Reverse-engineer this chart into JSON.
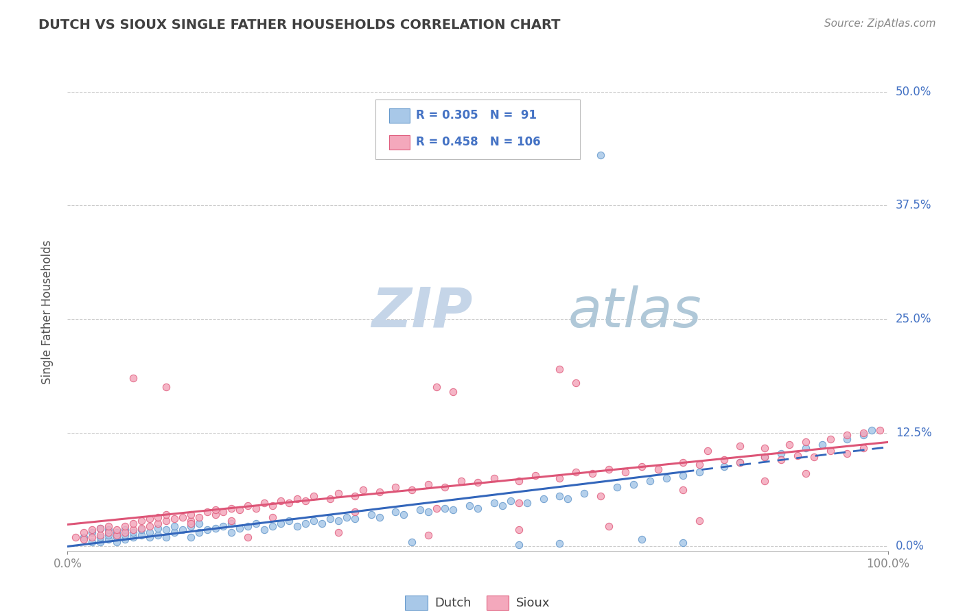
{
  "title": "DUTCH VS SIOUX SINGLE FATHER HOUSEHOLDS CORRELATION CHART",
  "source": "Source: ZipAtlas.com",
  "ylabel": "Single Father Households",
  "dutch_R": 0.305,
  "dutch_N": 91,
  "sioux_R": 0.458,
  "sioux_N": 106,
  "dutch_color": "#A8C8E8",
  "sioux_color": "#F4A8BC",
  "dutch_edge_color": "#6699CC",
  "sioux_edge_color": "#E06080",
  "dutch_line_color": "#3366BB",
  "sioux_line_color": "#DD5577",
  "background_color": "#FFFFFF",
  "grid_color": "#CCCCCC",
  "title_color": "#404040",
  "watermark_zip_color": "#C8D4E8",
  "watermark_atlas_color": "#B0C8D8",
  "legend_text_color": "#4472C4",
  "xlim": [
    0.0,
    1.0
  ],
  "ylim": [
    -0.005,
    0.52
  ],
  "yticks": [
    0.0,
    0.125,
    0.25,
    0.375,
    0.5
  ],
  "ytick_labels": [
    "0.0%",
    "12.5%",
    "25.0%",
    "37.5%",
    "50.0%"
  ],
  "xticks": [
    0.0,
    1.0
  ],
  "xtick_labels": [
    "0.0%",
    "100.0%"
  ],
  "seed": 42,
  "dutch_x": [
    0.02,
    0.03,
    0.03,
    0.04,
    0.04,
    0.04,
    0.05,
    0.05,
    0.05,
    0.06,
    0.06,
    0.06,
    0.07,
    0.07,
    0.07,
    0.08,
    0.08,
    0.09,
    0.09,
    0.1,
    0.1,
    0.11,
    0.11,
    0.12,
    0.12,
    0.13,
    0.13,
    0.14,
    0.15,
    0.15,
    0.16,
    0.16,
    0.17,
    0.18,
    0.19,
    0.2,
    0.2,
    0.21,
    0.22,
    0.23,
    0.24,
    0.25,
    0.26,
    0.27,
    0.28,
    0.29,
    0.3,
    0.31,
    0.32,
    0.33,
    0.34,
    0.35,
    0.37,
    0.38,
    0.4,
    0.41,
    0.43,
    0.44,
    0.46,
    0.47,
    0.49,
    0.5,
    0.52,
    0.53,
    0.54,
    0.56,
    0.58,
    0.6,
    0.61,
    0.63,
    0.65,
    0.67,
    0.69,
    0.71,
    0.73,
    0.75,
    0.77,
    0.8,
    0.82,
    0.85,
    0.87,
    0.9,
    0.92,
    0.95,
    0.97,
    0.98,
    0.42,
    0.55,
    0.6,
    0.7,
    0.75
  ],
  "dutch_y": [
    0.01,
    0.005,
    0.015,
    0.005,
    0.01,
    0.02,
    0.008,
    0.012,
    0.018,
    0.005,
    0.01,
    0.015,
    0.008,
    0.012,
    0.018,
    0.01,
    0.015,
    0.012,
    0.018,
    0.01,
    0.015,
    0.012,
    0.02,
    0.01,
    0.018,
    0.015,
    0.022,
    0.018,
    0.01,
    0.022,
    0.015,
    0.025,
    0.018,
    0.02,
    0.022,
    0.015,
    0.025,
    0.02,
    0.022,
    0.025,
    0.018,
    0.022,
    0.025,
    0.028,
    0.022,
    0.025,
    0.028,
    0.025,
    0.03,
    0.028,
    0.032,
    0.03,
    0.035,
    0.032,
    0.038,
    0.035,
    0.04,
    0.038,
    0.042,
    0.04,
    0.045,
    0.042,
    0.048,
    0.045,
    0.05,
    0.048,
    0.052,
    0.055,
    0.052,
    0.058,
    0.43,
    0.065,
    0.068,
    0.072,
    0.075,
    0.078,
    0.082,
    0.088,
    0.092,
    0.098,
    0.102,
    0.108,
    0.112,
    0.118,
    0.122,
    0.128,
    0.005,
    0.002,
    0.003,
    0.008,
    0.004
  ],
  "sioux_x": [
    0.01,
    0.02,
    0.02,
    0.03,
    0.03,
    0.04,
    0.04,
    0.05,
    0.05,
    0.06,
    0.06,
    0.07,
    0.07,
    0.08,
    0.08,
    0.09,
    0.09,
    0.1,
    0.1,
    0.11,
    0.11,
    0.12,
    0.12,
    0.13,
    0.14,
    0.15,
    0.15,
    0.16,
    0.17,
    0.18,
    0.18,
    0.19,
    0.2,
    0.21,
    0.22,
    0.23,
    0.24,
    0.25,
    0.26,
    0.27,
    0.28,
    0.29,
    0.3,
    0.32,
    0.33,
    0.35,
    0.36,
    0.38,
    0.4,
    0.42,
    0.44,
    0.46,
    0.48,
    0.5,
    0.52,
    0.55,
    0.57,
    0.6,
    0.62,
    0.64,
    0.66,
    0.68,
    0.7,
    0.72,
    0.75,
    0.77,
    0.8,
    0.82,
    0.85,
    0.87,
    0.89,
    0.91,
    0.93,
    0.95,
    0.97,
    0.08,
    0.12,
    0.45,
    0.47,
    0.62,
    0.6,
    0.78,
    0.82,
    0.85,
    0.88,
    0.9,
    0.93,
    0.95,
    0.97,
    0.99,
    0.15,
    0.2,
    0.25,
    0.35,
    0.45,
    0.55,
    0.65,
    0.75,
    0.85,
    0.9,
    0.22,
    0.33,
    0.44,
    0.55,
    0.66,
    0.77
  ],
  "sioux_y": [
    0.01,
    0.008,
    0.015,
    0.01,
    0.018,
    0.012,
    0.02,
    0.015,
    0.022,
    0.012,
    0.018,
    0.015,
    0.022,
    0.018,
    0.025,
    0.02,
    0.028,
    0.022,
    0.03,
    0.025,
    0.032,
    0.028,
    0.035,
    0.03,
    0.032,
    0.028,
    0.035,
    0.032,
    0.038,
    0.035,
    0.04,
    0.038,
    0.042,
    0.04,
    0.045,
    0.042,
    0.048,
    0.045,
    0.05,
    0.048,
    0.052,
    0.05,
    0.055,
    0.052,
    0.058,
    0.055,
    0.062,
    0.06,
    0.065,
    0.062,
    0.068,
    0.065,
    0.072,
    0.07,
    0.075,
    0.072,
    0.078,
    0.075,
    0.082,
    0.08,
    0.085,
    0.082,
    0.088,
    0.085,
    0.092,
    0.09,
    0.095,
    0.092,
    0.098,
    0.095,
    0.1,
    0.098,
    0.105,
    0.102,
    0.108,
    0.185,
    0.175,
    0.175,
    0.17,
    0.18,
    0.195,
    0.105,
    0.11,
    0.108,
    0.112,
    0.115,
    0.118,
    0.122,
    0.125,
    0.128,
    0.025,
    0.028,
    0.032,
    0.038,
    0.042,
    0.048,
    0.055,
    0.062,
    0.072,
    0.08,
    0.01,
    0.015,
    0.012,
    0.018,
    0.022,
    0.028
  ]
}
